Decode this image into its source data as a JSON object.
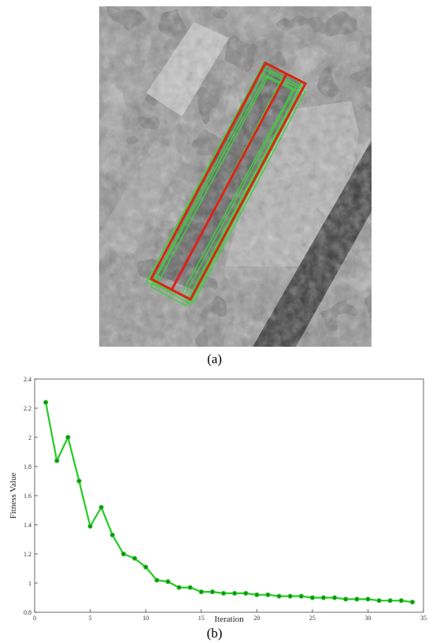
{
  "captions": {
    "a": "(a)",
    "b": "(b)"
  },
  "figure_a": {
    "content": "grayscale aerial image with overlaid building bounding rectangles",
    "colors": {
      "best_box": "#e0201a",
      "candidate_boxes": "#3fcf3f"
    }
  },
  "chart_data": {
    "type": "line",
    "xlabel": "Iteration",
    "ylabel": "Fitness Value",
    "xlim": [
      0,
      35
    ],
    "ylim": [
      0.8,
      2.4
    ],
    "xticks": [
      0,
      5,
      10,
      15,
      20,
      25,
      30,
      35
    ],
    "yticks": [
      0.8,
      1,
      1.2,
      1.4,
      1.6,
      1.8,
      2,
      2.2,
      2.4
    ],
    "grid": false,
    "color": "#22cc22",
    "series": [
      {
        "x": [
          1,
          2,
          3,
          4,
          5,
          6,
          7,
          8,
          9,
          10,
          11,
          12,
          13,
          14,
          15,
          16,
          17,
          18,
          19,
          20,
          21,
          22,
          23,
          24,
          25,
          26,
          27,
          28,
          29,
          30,
          31,
          32,
          33,
          34
        ],
        "values": [
          2.24,
          1.84,
          2.0,
          1.7,
          1.39,
          1.52,
          1.33,
          1.2,
          1.17,
          1.11,
          1.02,
          1.01,
          0.97,
          0.97,
          0.94,
          0.94,
          0.93,
          0.93,
          0.93,
          0.92,
          0.92,
          0.91,
          0.91,
          0.91,
          0.9,
          0.9,
          0.9,
          0.89,
          0.89,
          0.89,
          0.88,
          0.88,
          0.88,
          0.87
        ]
      }
    ]
  }
}
